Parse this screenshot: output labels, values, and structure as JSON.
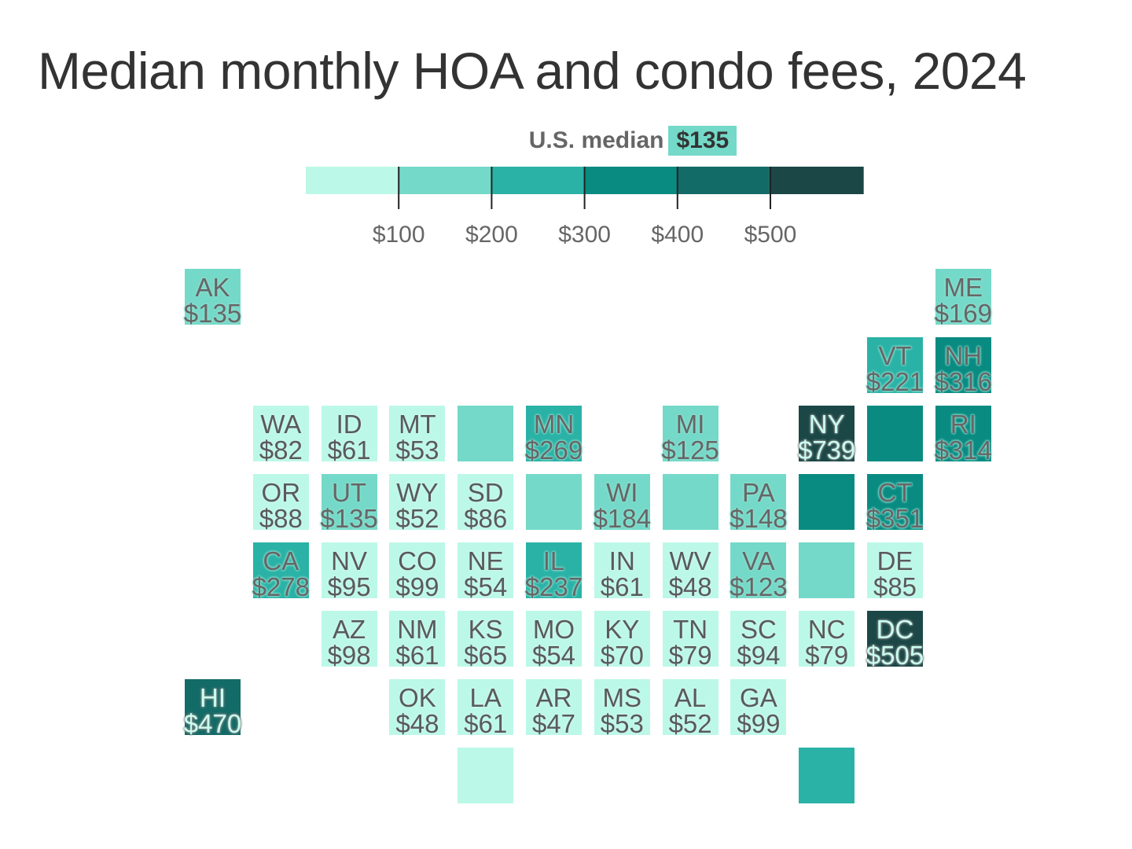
{
  "chart_data": {
    "type": "tile-map",
    "title": "Median monthly HOA and condo fees, 2024",
    "legend": {
      "median_label": "U.S. median",
      "median_value": "$135",
      "thresholds": [
        100,
        200,
        300,
        400,
        500
      ],
      "tick_labels": [
        "$100",
        "$200",
        "$300",
        "$400",
        "$500"
      ],
      "colors": [
        "#bcf8e7",
        "#74d9c8",
        "#2ab2a6",
        "#098b82",
        "#136b67",
        "#1b4747"
      ]
    },
    "tiles": [
      {
        "state": "AK",
        "value": 135,
        "label": "$135",
        "col": 0,
        "row": 0
      },
      {
        "state": "ME",
        "value": 169,
        "label": "$169",
        "col": 11,
        "row": 0
      },
      {
        "state": "VT",
        "value": 221,
        "label": "$221",
        "col": 10,
        "row": 1
      },
      {
        "state": "NH",
        "value": 316,
        "label": "$316",
        "col": 11,
        "row": 1
      },
      {
        "state": "WA",
        "value": 82,
        "label": "$82",
        "col": 1,
        "row": 2
      },
      {
        "state": "ID",
        "value": 61,
        "label": "$61",
        "col": 2,
        "row": 2
      },
      {
        "state": "MT",
        "value": 53,
        "label": "$53",
        "col": 3,
        "row": 2
      },
      {
        "state": "",
        "bin": 1,
        "col": 4,
        "row": 2
      },
      {
        "state": "MN",
        "value": 269,
        "label": "$269",
        "col": 5,
        "row": 2
      },
      {
        "state": "MI",
        "value": 125,
        "label": "$125",
        "col": 7,
        "row": 2
      },
      {
        "state": "NY",
        "value": 739,
        "label": "$739",
        "col": 9,
        "row": 2
      },
      {
        "state": "",
        "bin": 3,
        "col": 10,
        "row": 2
      },
      {
        "state": "RI",
        "value": 314,
        "label": "$314",
        "col": 11,
        "row": 2
      },
      {
        "state": "OR",
        "value": 88,
        "label": "$88",
        "col": 1,
        "row": 3
      },
      {
        "state": "UT",
        "value": 135,
        "label": "$135",
        "col": 2,
        "row": 3
      },
      {
        "state": "WY",
        "value": 52,
        "label": "$52",
        "col": 3,
        "row": 3
      },
      {
        "state": "SD",
        "value": 86,
        "label": "$86",
        "col": 4,
        "row": 3
      },
      {
        "state": "",
        "bin": 1,
        "col": 5,
        "row": 3
      },
      {
        "state": "WI",
        "value": 184,
        "label": "$184",
        "col": 6,
        "row": 3
      },
      {
        "state": "",
        "bin": 1,
        "col": 7,
        "row": 3
      },
      {
        "state": "PA",
        "value": 148,
        "label": "$148",
        "col": 8,
        "row": 3
      },
      {
        "state": "",
        "bin": 3,
        "col": 9,
        "row": 3
      },
      {
        "state": "CT",
        "value": 351,
        "label": "$351",
        "col": 10,
        "row": 3
      },
      {
        "state": "CA",
        "value": 278,
        "label": "$278",
        "col": 1,
        "row": 4
      },
      {
        "state": "NV",
        "value": 95,
        "label": "$95",
        "col": 2,
        "row": 4
      },
      {
        "state": "CO",
        "value": 99,
        "label": "$99",
        "col": 3,
        "row": 4
      },
      {
        "state": "NE",
        "value": 54,
        "label": "$54",
        "col": 4,
        "row": 4
      },
      {
        "state": "IL",
        "value": 237,
        "label": "$237",
        "col": 5,
        "row": 4
      },
      {
        "state": "IN",
        "value": 61,
        "label": "$61",
        "col": 6,
        "row": 4
      },
      {
        "state": "WV",
        "value": 48,
        "label": "$48",
        "col": 7,
        "row": 4
      },
      {
        "state": "VA",
        "value": 123,
        "label": "$123",
        "col": 8,
        "row": 4
      },
      {
        "state": "",
        "bin": 1,
        "col": 9,
        "row": 4
      },
      {
        "state": "DE",
        "value": 85,
        "label": "$85",
        "col": 10,
        "row": 4
      },
      {
        "state": "AZ",
        "value": 98,
        "label": "$98",
        "col": 2,
        "row": 5
      },
      {
        "state": "NM",
        "value": 61,
        "label": "$61",
        "col": 3,
        "row": 5
      },
      {
        "state": "KS",
        "value": 65,
        "label": "$65",
        "col": 4,
        "row": 5
      },
      {
        "state": "MO",
        "value": 54,
        "label": "$54",
        "col": 5,
        "row": 5
      },
      {
        "state": "KY",
        "value": 70,
        "label": "$70",
        "col": 6,
        "row": 5
      },
      {
        "state": "TN",
        "value": 79,
        "label": "$79",
        "col": 7,
        "row": 5
      },
      {
        "state": "SC",
        "value": 94,
        "label": "$94",
        "col": 8,
        "row": 5
      },
      {
        "state": "NC",
        "value": 79,
        "label": "$79",
        "col": 9,
        "row": 5
      },
      {
        "state": "DC",
        "value": 505,
        "label": "$505",
        "col": 10,
        "row": 5
      },
      {
        "state": "HI",
        "value": 470,
        "label": "$470",
        "col": 0,
        "row": 6
      },
      {
        "state": "OK",
        "value": 48,
        "label": "$48",
        "col": 3,
        "row": 6
      },
      {
        "state": "LA",
        "value": 61,
        "label": "$61",
        "col": 4,
        "row": 6
      },
      {
        "state": "AR",
        "value": 47,
        "label": "$47",
        "col": 5,
        "row": 6
      },
      {
        "state": "MS",
        "value": 53,
        "label": "$53",
        "col": 6,
        "row": 6
      },
      {
        "state": "AL",
        "value": 52,
        "label": "$52",
        "col": 7,
        "row": 6
      },
      {
        "state": "GA",
        "value": 99,
        "label": "$99",
        "col": 8,
        "row": 6
      },
      {
        "state": "",
        "bin": 0,
        "col": 4,
        "row": 7
      },
      {
        "state": "",
        "bin": 2,
        "col": 9,
        "row": 7
      }
    ]
  }
}
